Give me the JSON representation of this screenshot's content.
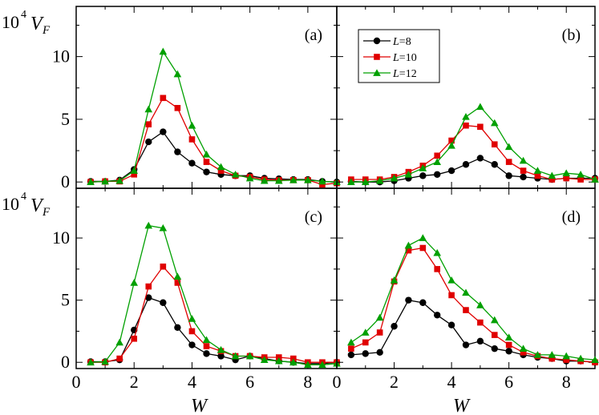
{
  "chart_data": {
    "type": "line",
    "xlabel": "W",
    "ylabel": {
      "prefix": "10",
      "exp": "4",
      "var": "V",
      "sub": "F"
    },
    "xlim": [
      0,
      9
    ],
    "ylim": [
      -0.5,
      14
    ],
    "x_ticks": [
      "0",
      "2",
      "4",
      "6",
      "8"
    ],
    "y_ticks": [
      "0",
      "5",
      "10"
    ],
    "legend": {
      "position": "top-left of panel (b)",
      "entries": [
        {
          "italic": "L",
          "text": "=8"
        },
        {
          "italic": "L",
          "text": "=10"
        },
        {
          "italic": "L",
          "text": "=12"
        }
      ]
    },
    "series_style": [
      {
        "color": "#000000",
        "marker": "circle"
      },
      {
        "color": "#e00000",
        "marker": "square"
      },
      {
        "color": "#00a000",
        "marker": "triangle"
      }
    ],
    "x": [
      0.5,
      1.0,
      1.5,
      2.0,
      2.5,
      3.0,
      3.5,
      4.0,
      4.5,
      5.0,
      5.5,
      6.0,
      6.5,
      7.0,
      7.5,
      8.0,
      8.5,
      9.0
    ],
    "panels": [
      {
        "label": "(a)",
        "series": [
          {
            "name": "L=8",
            "values": [
              0.05,
              0.05,
              0.15,
              1.0,
              3.2,
              4.0,
              2.4,
              1.5,
              0.8,
              0.6,
              0.5,
              0.5,
              0.3,
              0.25,
              0.2,
              0.2,
              0.05,
              0.0
            ]
          },
          {
            "name": "L=10",
            "values": [
              0.0,
              0.05,
              0.05,
              0.6,
              4.6,
              6.7,
              5.9,
              3.4,
              1.6,
              0.9,
              0.5,
              0.4,
              0.2,
              0.15,
              0.15,
              0.15,
              -0.2,
              -0.1
            ]
          },
          {
            "name": "L=12",
            "values": [
              0.0,
              0.05,
              0.1,
              0.9,
              5.8,
              10.4,
              8.6,
              4.5,
              2.2,
              1.2,
              0.6,
              0.3,
              0.1,
              0.1,
              0.15,
              0.15,
              0.05,
              0.0
            ]
          }
        ]
      },
      {
        "label": "(b)",
        "series": [
          {
            "name": "L=8",
            "values": [
              0.05,
              0.0,
              0.0,
              0.1,
              0.3,
              0.5,
              0.6,
              0.9,
              1.4,
              1.9,
              1.4,
              0.5,
              0.4,
              0.3,
              0.2,
              0.3,
              0.3,
              0.3
            ]
          },
          {
            "name": "L=10",
            "values": [
              0.2,
              0.2,
              0.2,
              0.4,
              0.8,
              1.3,
              2.1,
              3.3,
              4.5,
              4.4,
              3.0,
              1.6,
              0.9,
              0.5,
              0.2,
              0.3,
              0.2,
              0.2
            ]
          },
          {
            "name": "L=12",
            "values": [
              0.0,
              0.0,
              0.1,
              0.3,
              0.6,
              1.1,
              1.6,
              2.9,
              5.2,
              6.0,
              4.7,
              2.8,
              1.7,
              0.9,
              0.5,
              0.7,
              0.6,
              0.2
            ]
          }
        ]
      },
      {
        "label": "(c)",
        "series": [
          {
            "name": "L=8",
            "values": [
              0.05,
              0.05,
              0.2,
              2.6,
              5.2,
              4.8,
              2.8,
              1.4,
              0.7,
              0.5,
              0.2,
              0.5,
              0.3,
              0.1,
              0.0,
              -0.1,
              -0.1,
              0.0
            ]
          },
          {
            "name": "L=10",
            "values": [
              0.0,
              0.0,
              0.3,
              1.9,
              6.1,
              7.7,
              6.4,
              2.5,
              1.3,
              0.9,
              0.5,
              0.5,
              0.4,
              0.4,
              0.3,
              0.0,
              0.0,
              0.0
            ]
          },
          {
            "name": "L=12",
            "values": [
              0.0,
              0.05,
              1.6,
              6.4,
              11.0,
              10.8,
              6.9,
              3.5,
              1.8,
              1.0,
              0.5,
              0.5,
              0.2,
              0.1,
              0.0,
              -0.2,
              -0.2,
              -0.1
            ]
          }
        ]
      },
      {
        "label": "(d)",
        "series": [
          {
            "name": "L=8",
            "values": [
              0.6,
              0.7,
              0.8,
              2.9,
              5.0,
              4.8,
              3.8,
              3.0,
              1.4,
              1.7,
              1.1,
              0.9,
              0.6,
              0.4,
              0.3,
              0.1,
              0.1,
              0.0
            ]
          },
          {
            "name": "L=10",
            "values": [
              1.1,
              1.6,
              2.4,
              6.5,
              9.0,
              9.2,
              7.5,
              5.4,
              4.2,
              3.2,
              2.2,
              1.4,
              0.8,
              0.5,
              0.3,
              0.2,
              0.1,
              0.0
            ]
          },
          {
            "name": "L=12",
            "values": [
              1.6,
              2.4,
              3.6,
              6.6,
              9.4,
              10.0,
              8.8,
              6.6,
              5.6,
              4.6,
              3.4,
              2.0,
              1.1,
              0.6,
              0.6,
              0.5,
              0.3,
              0.2
            ]
          }
        ]
      }
    ]
  }
}
